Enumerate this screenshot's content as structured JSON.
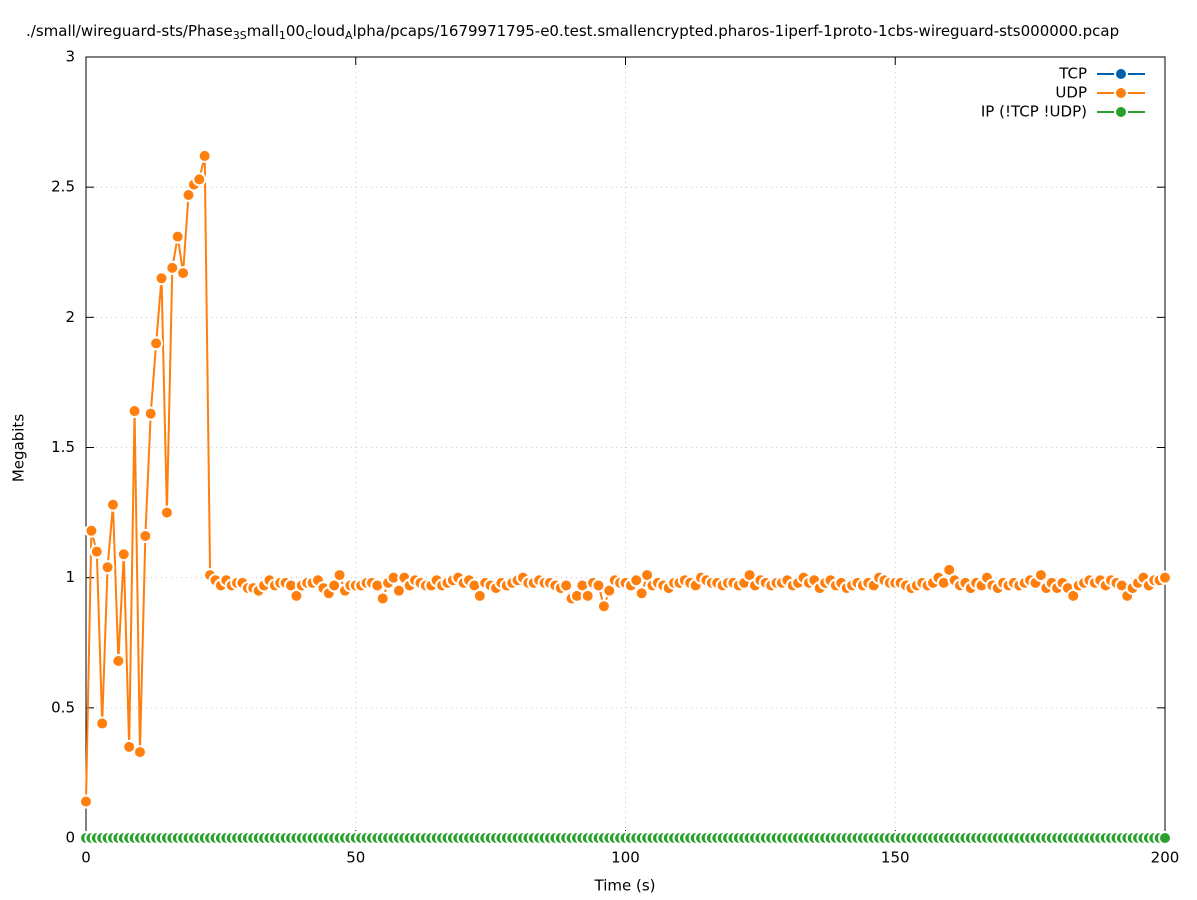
{
  "chart_data": {
    "type": "line",
    "title": [
      "./small/wireguard-sts/Phase",
      "3S",
      "mall",
      "1",
      "00",
      "C",
      "loud",
      "A",
      "lpha/pcaps/1679971795-e0.test.smallencrypted.pharos-1iperf-1proto-1cbs-wireguard-sts000000.pcap"
    ],
    "xlabel": "Time (s)",
    "ylabel": "Megabits",
    "xlim": [
      0,
      200
    ],
    "ylim": [
      0,
      3
    ],
    "xticks": [
      0,
      50,
      100,
      150,
      200
    ],
    "yticks": [
      0,
      0.5,
      1,
      1.5,
      2,
      2.5,
      3
    ],
    "grid": true,
    "legend": "top-right",
    "x": [
      0,
      1,
      2,
      3,
      4,
      5,
      6,
      7,
      8,
      9,
      10,
      11,
      12,
      13,
      14,
      15,
      16,
      17,
      18,
      19,
      20,
      21,
      22,
      23,
      24,
      25,
      26,
      27,
      28,
      29,
      30,
      31,
      32,
      33,
      34,
      35,
      36,
      37,
      38,
      39,
      40,
      41,
      42,
      43,
      44,
      45,
      46,
      47,
      48,
      49,
      50,
      51,
      52,
      53,
      54,
      55,
      56,
      57,
      58,
      59,
      60,
      61,
      62,
      63,
      64,
      65,
      66,
      67,
      68,
      69,
      70,
      71,
      72,
      73,
      74,
      75,
      76,
      77,
      78,
      79,
      80,
      81,
      82,
      83,
      84,
      85,
      86,
      87,
      88,
      89,
      90,
      91,
      92,
      93,
      94,
      95,
      96,
      97,
      98,
      99,
      100,
      101,
      102,
      103,
      104,
      105,
      106,
      107,
      108,
      109,
      110,
      111,
      112,
      113,
      114,
      115,
      116,
      117,
      118,
      119,
      120,
      121,
      122,
      123,
      124,
      125,
      126,
      127,
      128,
      129,
      130,
      131,
      132,
      133,
      134,
      135,
      136,
      137,
      138,
      139,
      140,
      141,
      142,
      143,
      144,
      145,
      146,
      147,
      148,
      149,
      150,
      151,
      152,
      153,
      154,
      155,
      156,
      157,
      158,
      159,
      160,
      161,
      162,
      163,
      164,
      165,
      166,
      167,
      168,
      169,
      170,
      171,
      172,
      173,
      174,
      175,
      176,
      177,
      178,
      179,
      180,
      181,
      182,
      183,
      184,
      185,
      186,
      187,
      188,
      189,
      190,
      191,
      192,
      193,
      194,
      195,
      196,
      197,
      198,
      199,
      200
    ],
    "series": [
      {
        "name": "TCP",
        "color": "#0060ad",
        "values": [
          0,
          0,
          0,
          0,
          0,
          0,
          0,
          0,
          0,
          0,
          0,
          0,
          0,
          0,
          0,
          0,
          0,
          0,
          0,
          0,
          0,
          0,
          0,
          0,
          0,
          0,
          0,
          0,
          0,
          0,
          0,
          0,
          0,
          0,
          0,
          0,
          0,
          0,
          0,
          0,
          0,
          0,
          0,
          0,
          0,
          0,
          0,
          0,
          0,
          0,
          0,
          0,
          0,
          0,
          0,
          0,
          0,
          0,
          0,
          0,
          0,
          0,
          0,
          0,
          0,
          0,
          0,
          0,
          0,
          0,
          0,
          0,
          0,
          0,
          0,
          0,
          0,
          0,
          0,
          0,
          0,
          0,
          0,
          0,
          0,
          0,
          0,
          0,
          0,
          0,
          0,
          0,
          0,
          0,
          0,
          0,
          0,
          0,
          0,
          0,
          0,
          0,
          0,
          0,
          0,
          0,
          0,
          0,
          0,
          0,
          0,
          0,
          0,
          0,
          0,
          0,
          0,
          0,
          0,
          0,
          0,
          0,
          0,
          0,
          0,
          0,
          0,
          0,
          0,
          0,
          0,
          0,
          0,
          0,
          0,
          0,
          0,
          0,
          0,
          0,
          0,
          0,
          0,
          0,
          0,
          0,
          0,
          0,
          0,
          0,
          0,
          0,
          0,
          0,
          0,
          0,
          0,
          0,
          0,
          0,
          0,
          0,
          0,
          0,
          0,
          0,
          0,
          0,
          0,
          0,
          0,
          0,
          0,
          0,
          0,
          0,
          0,
          0,
          0,
          0,
          0,
          0,
          0,
          0,
          0,
          0,
          0,
          0,
          0,
          0,
          0,
          0,
          0,
          0,
          0,
          0,
          0,
          0,
          0,
          0,
          0
        ]
      },
      {
        "name": "UDP",
        "color": "#ff7f0e",
        "values": [
          0.14,
          1.18,
          1.1,
          0.44,
          1.04,
          1.28,
          0.68,
          1.09,
          0.35,
          1.64,
          0.33,
          1.16,
          1.63,
          1.9,
          2.15,
          1.25,
          2.19,
          2.31,
          2.17,
          2.47,
          2.51,
          2.53,
          2.62,
          1.01,
          0.99,
          0.97,
          0.99,
          0.97,
          0.98,
          0.98,
          0.96,
          0.96,
          0.95,
          0.97,
          0.99,
          0.97,
          0.98,
          0.98,
          0.97,
          0.93,
          0.97,
          0.98,
          0.98,
          0.99,
          0.96,
          0.94,
          0.97,
          1.01,
          0.95,
          0.97,
          0.97,
          0.97,
          0.98,
          0.98,
          0.97,
          0.92,
          0.98,
          1.0,
          0.95,
          1.0,
          0.97,
          0.99,
          0.98,
          0.97,
          0.97,
          0.99,
          0.97,
          0.98,
          0.99,
          1.0,
          0.98,
          0.99,
          0.97,
          0.93,
          0.98,
          0.97,
          0.96,
          0.98,
          0.97,
          0.98,
          0.99,
          1.0,
          0.98,
          0.98,
          0.99,
          0.98,
          0.98,
          0.97,
          0.96,
          0.97,
          0.92,
          0.93,
          0.97,
          0.93,
          0.98,
          0.97,
          0.89,
          0.95,
          0.99,
          0.98,
          0.98,
          0.97,
          0.99,
          0.94,
          1.01,
          0.97,
          0.98,
          0.97,
          0.96,
          0.98,
          0.98,
          0.99,
          0.98,
          0.97,
          1.0,
          0.99,
          0.98,
          0.98,
          0.97,
          0.98,
          0.98,
          0.97,
          0.98,
          1.01,
          0.97,
          0.99,
          0.98,
          0.97,
          0.98,
          0.98,
          0.99,
          0.97,
          0.98,
          1.0,
          0.98,
          0.99,
          0.96,
          0.98,
          0.99,
          0.97,
          0.98,
          0.96,
          0.97,
          0.98,
          0.97,
          0.98,
          0.97,
          1.0,
          0.99,
          0.98,
          0.98,
          0.98,
          0.97,
          0.96,
          0.97,
          0.98,
          0.97,
          0.98,
          1.0,
          0.98,
          1.03,
          0.99,
          0.97,
          0.98,
          0.96,
          0.98,
          0.97,
          1.0,
          0.97,
          0.96,
          0.98,
          0.97,
          0.98,
          0.97,
          0.98,
          0.99,
          0.98,
          1.01,
          0.96,
          0.98,
          0.96,
          0.98,
          0.96,
          0.93,
          0.97,
          0.98,
          0.99,
          0.98,
          0.99,
          0.97,
          0.99,
          0.98,
          0.97,
          0.93,
          0.96,
          0.98,
          1.0,
          0.97,
          0.99,
          0.99,
          1.0
        ]
      },
      {
        "name": "IP (!TCP  !UDP)",
        "color": "#2ca02c",
        "values": [
          0,
          0,
          0,
          0,
          0,
          0,
          0,
          0,
          0,
          0,
          0,
          0,
          0,
          0,
          0,
          0,
          0,
          0,
          0,
          0,
          0,
          0,
          0,
          0,
          0,
          0,
          0,
          0,
          0,
          0,
          0,
          0,
          0,
          0,
          0,
          0,
          0,
          0,
          0,
          0,
          0,
          0,
          0,
          0,
          0,
          0,
          0,
          0,
          0,
          0,
          0,
          0,
          0,
          0,
          0,
          0,
          0,
          0,
          0,
          0,
          0,
          0,
          0,
          0,
          0,
          0,
          0,
          0,
          0,
          0,
          0,
          0,
          0,
          0,
          0,
          0,
          0,
          0,
          0,
          0,
          0,
          0,
          0,
          0,
          0,
          0,
          0,
          0,
          0,
          0,
          0,
          0,
          0,
          0,
          0,
          0,
          0,
          0,
          0,
          0,
          0,
          0,
          0,
          0,
          0,
          0,
          0,
          0,
          0,
          0,
          0,
          0,
          0,
          0,
          0,
          0,
          0,
          0,
          0,
          0,
          0,
          0,
          0,
          0,
          0,
          0,
          0,
          0,
          0,
          0,
          0,
          0,
          0,
          0,
          0,
          0,
          0,
          0,
          0,
          0,
          0,
          0,
          0,
          0,
          0,
          0,
          0,
          0,
          0,
          0,
          0,
          0,
          0,
          0,
          0,
          0,
          0,
          0,
          0,
          0,
          0,
          0,
          0,
          0,
          0,
          0,
          0,
          0,
          0,
          0,
          0,
          0,
          0,
          0,
          0,
          0,
          0,
          0,
          0,
          0,
          0,
          0,
          0,
          0,
          0,
          0,
          0,
          0,
          0,
          0,
          0,
          0,
          0,
          0,
          0,
          0,
          0,
          0,
          0,
          0,
          0
        ]
      }
    ]
  }
}
